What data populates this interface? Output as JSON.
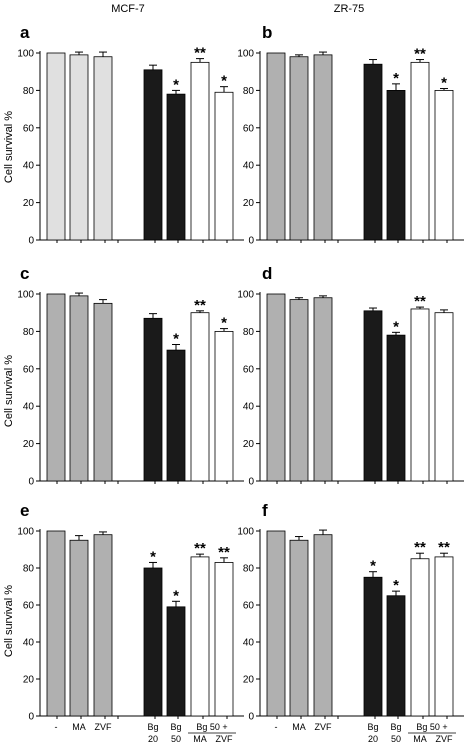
{
  "column_titles": [
    "MCF-7",
    "ZR-75"
  ],
  "ylabel": "Cell survival %",
  "category_labels": [
    {
      "line1": "-",
      "line2": ""
    },
    {
      "line1": "MA",
      "line2": ""
    },
    {
      "line1": "ZVF",
      "line2": ""
    },
    {
      "line1": "Bg",
      "line2": "20"
    },
    {
      "line1": "Bg",
      "line2": "50"
    },
    {
      "line1": "Bg 50 +",
      "line2": "MA"
    },
    {
      "line1": "",
      "line2": "ZVF"
    }
  ],
  "colors": {
    "control_light": "#e0e0e0",
    "control_mid": "#b0b0b0",
    "bg": "#1a1a1a",
    "combo": "#ffffff",
    "axis": "#000000"
  },
  "chart_data": [
    {
      "panel": "a",
      "type": "bar",
      "ylim": [
        0,
        100
      ],
      "yticks": [
        0,
        20,
        40,
        60,
        80,
        100
      ],
      "categories": [
        "-",
        "MA",
        "ZVF",
        "Bg 20",
        "Bg 50",
        "Bg 50 + MA",
        "Bg 50 + ZVF"
      ],
      "values": [
        100,
        99,
        98,
        91,
        78,
        95,
        79
      ],
      "errors": [
        0,
        1.5,
        2.5,
        2.5,
        2,
        2,
        3
      ],
      "significance": [
        "",
        "",
        "",
        "",
        "*",
        "**",
        "*"
      ]
    },
    {
      "panel": "b",
      "type": "bar",
      "ylim": [
        0,
        100
      ],
      "yticks": [
        0,
        20,
        40,
        60,
        80,
        100
      ],
      "categories": [
        "-",
        "MA",
        "ZVF",
        "Bg 20",
        "Bg 50",
        "Bg 50 + MA",
        "Bg 50 + ZVF"
      ],
      "values": [
        100,
        98,
        99,
        94,
        80,
        95,
        80
      ],
      "errors": [
        0,
        1,
        1.5,
        2.5,
        3.5,
        1.5,
        1
      ],
      "significance": [
        "",
        "",
        "",
        "",
        "*",
        "**",
        "*"
      ]
    },
    {
      "panel": "c",
      "type": "bar",
      "ylim": [
        0,
        100
      ],
      "yticks": [
        0,
        20,
        40,
        60,
        80,
        100
      ],
      "categories": [
        "-",
        "MA",
        "ZVF",
        "Bg 20",
        "Bg 50",
        "Bg 50 + MA",
        "Bg 50 + ZVF"
      ],
      "values": [
        100,
        99,
        95,
        87,
        70,
        90,
        80
      ],
      "errors": [
        0,
        1.5,
        2,
        2.5,
        3,
        1,
        1.5
      ],
      "significance": [
        "",
        "",
        "",
        "",
        "*",
        "**",
        "*"
      ]
    },
    {
      "panel": "d",
      "type": "bar",
      "ylim": [
        0,
        100
      ],
      "yticks": [
        0,
        20,
        40,
        60,
        80,
        100
      ],
      "categories": [
        "-",
        "MA",
        "ZVF",
        "Bg 20",
        "Bg 50",
        "Bg 50 + MA",
        "Bg 50 + ZVF"
      ],
      "values": [
        100,
        97,
        98,
        91,
        78,
        92,
        90
      ],
      "errors": [
        0,
        1,
        1,
        1.5,
        1.5,
        1,
        1.5
      ],
      "significance": [
        "",
        "",
        "",
        "",
        "*",
        "**",
        ""
      ]
    },
    {
      "panel": "e",
      "type": "bar",
      "ylim": [
        0,
        100
      ],
      "yticks": [
        0,
        20,
        40,
        60,
        80,
        100
      ],
      "categories": [
        "-",
        "MA",
        "ZVF",
        "Bg 20",
        "Bg 50",
        "Bg 50 + MA",
        "Bg 50 + ZVF"
      ],
      "values": [
        100,
        95,
        98,
        80,
        59,
        86,
        83
      ],
      "errors": [
        0,
        2.5,
        1.5,
        3,
        3,
        1.5,
        2.5
      ],
      "significance": [
        "",
        "",
        "",
        "*",
        "*",
        "**",
        "**"
      ]
    },
    {
      "panel": "f",
      "type": "bar",
      "ylim": [
        0,
        100
      ],
      "yticks": [
        0,
        20,
        40,
        60,
        80,
        100
      ],
      "categories": [
        "-",
        "MA",
        "ZVF",
        "Bg 20",
        "Bg 50",
        "Bg 50 + MA",
        "Bg 50 + ZVF"
      ],
      "values": [
        100,
        95,
        98,
        75,
        65,
        85,
        86
      ],
      "errors": [
        0,
        2,
        2.5,
        3,
        2.5,
        3,
        2
      ],
      "significance": [
        "",
        "",
        "",
        "*",
        "*",
        "**",
        "**"
      ]
    }
  ]
}
